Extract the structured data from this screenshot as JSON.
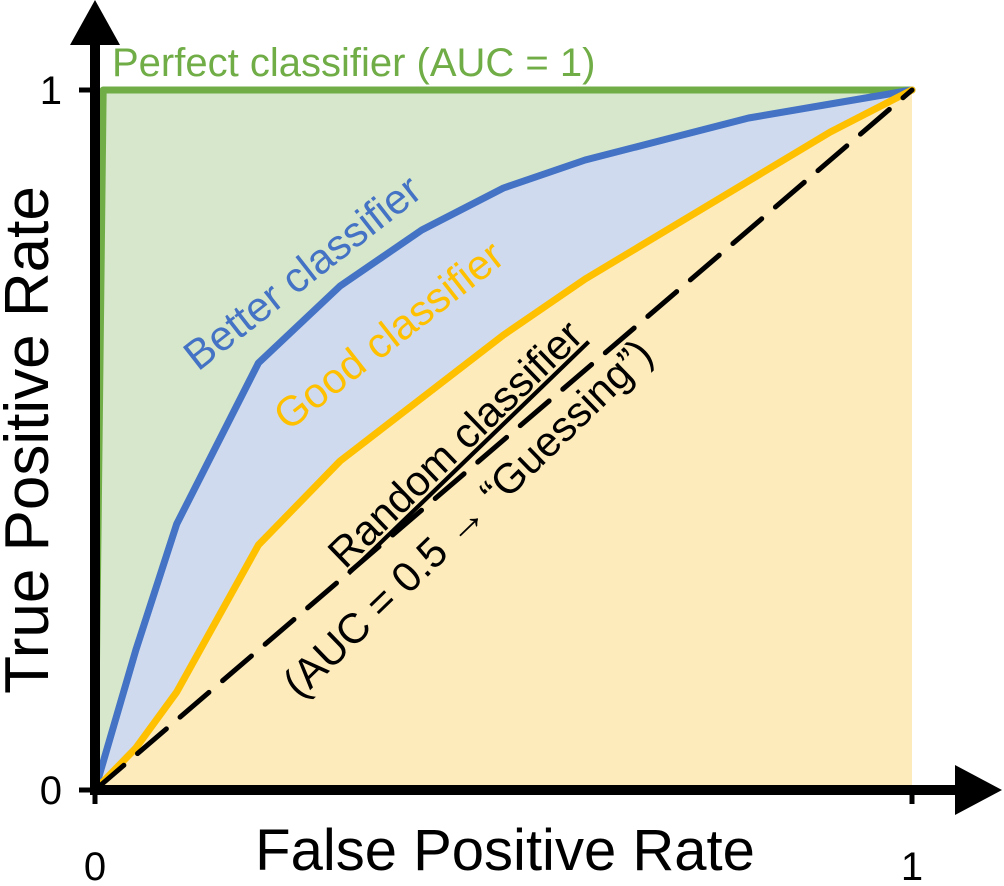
{
  "chart_data": {
    "type": "line",
    "x_label": "False Positive Rate",
    "y_label": "True Positive Rate",
    "xlim": [
      0,
      1
    ],
    "ylim": [
      0,
      1
    ],
    "xticks": [
      0,
      1
    ],
    "yticks": [
      0,
      1
    ],
    "series": [
      {
        "name": "Perfect classifier (AUC = 1)",
        "color": "#70ad47",
        "fill": "#d6e7cb",
        "x": [
          0,
          0.01,
          1
        ],
        "values": [
          0,
          1,
          1
        ]
      },
      {
        "name": "Better classifier",
        "color": "#4472c4",
        "fill": "#cfdaef",
        "x": [
          0,
          0.05,
          0.1,
          0.2,
          0.3,
          0.4,
          0.5,
          0.6,
          0.7,
          0.8,
          0.9,
          1
        ],
        "values": [
          0,
          0.2,
          0.38,
          0.61,
          0.72,
          0.8,
          0.86,
          0.9,
          0.93,
          0.96,
          0.98,
          1
        ]
      },
      {
        "name": "Good classifier",
        "color": "#ffc000",
        "fill": "#fdebbb",
        "x": [
          0,
          0.05,
          0.1,
          0.2,
          0.3,
          0.4,
          0.5,
          0.6,
          0.7,
          0.8,
          0.9,
          1
        ],
        "values": [
          0,
          0.06,
          0.14,
          0.35,
          0.47,
          0.56,
          0.65,
          0.73,
          0.8,
          0.87,
          0.94,
          1
        ]
      },
      {
        "name": "Random classifier",
        "color": "#000000",
        "dashed": true,
        "x": [
          0,
          1
        ],
        "values": [
          0,
          1
        ]
      }
    ],
    "annotation": "(AUC = 0.5 → “Guessing”)"
  }
}
